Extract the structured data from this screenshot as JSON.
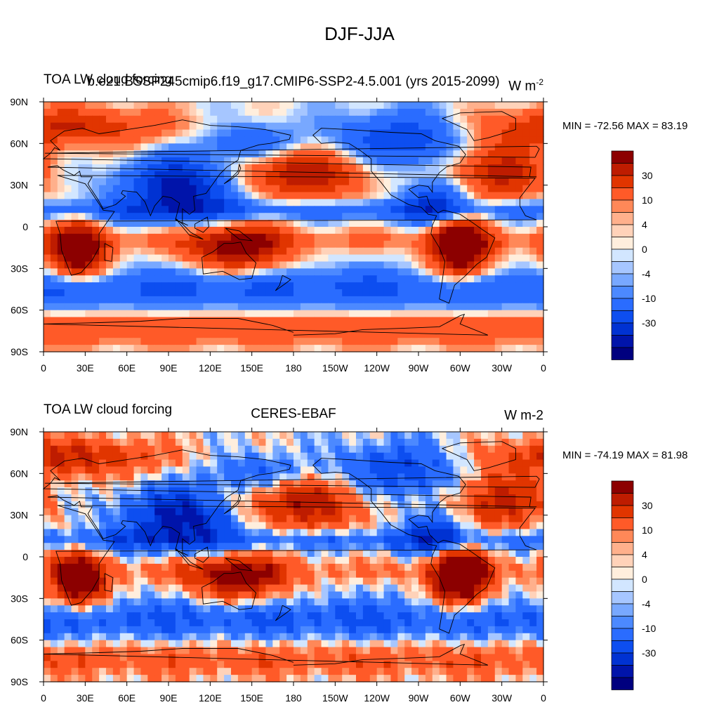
{
  "figure": {
    "title": "DJF-JJA",
    "colors": {
      "levels": [
        -50,
        -40,
        -30,
        -20,
        -10,
        -6,
        -4,
        -2,
        0,
        2,
        4,
        6,
        10,
        20,
        30,
        40,
        50
      ],
      "palette": [
        "#00007f",
        "#0014aa",
        "#0032d2",
        "#0d4ef0",
        "#2a6cff",
        "#4c89ff",
        "#78a8ff",
        "#a6c6ff",
        "#d2e6ff",
        "#ffeedd",
        "#ffd2b9",
        "#ffb08c",
        "#ff8858",
        "#ff5a28",
        "#e13500",
        "#be1c00",
        "#8c0000"
      ],
      "coastline": "#000000"
    }
  },
  "panels": [
    {
      "title_left": "TOA LW cloud forcing",
      "title_center": "b.e21.BSSP245cmip6.f19_g17.CMIP6-SSP2-4.5.001 (yrs 2015-2099)",
      "units": "W m",
      "units_sup": "-2",
      "min_max": "MIN = -72.56 MAX =  83.19",
      "colorbar_labels": [
        "30",
        "10",
        "4",
        "0",
        "-4",
        "-10",
        "-30"
      ],
      "x_tick_labels": [
        "0",
        "30E",
        "60E",
        "90E",
        "120E",
        "150E",
        "180",
        "150W",
        "120W",
        "90W",
        "60W",
        "30W",
        "0"
      ],
      "y_tick_labels": [
        "90N",
        "60N",
        "30N",
        "0",
        "30S",
        "60S",
        "90S"
      ]
    },
    {
      "title_left": "TOA LW cloud forcing",
      "title_center": "CERES-EBAF",
      "units": "W m-2",
      "units_sup": "",
      "min_max": "MIN = -74.19 MAX =  81.98",
      "colorbar_labels": [
        "30",
        "10",
        "4",
        "0",
        "-4",
        "-10",
        "-30"
      ],
      "x_tick_labels": [
        "0",
        "30E",
        "60E",
        "90E",
        "120E",
        "150E",
        "180",
        "150W",
        "120W",
        "90W",
        "60W",
        "30W",
        "0"
      ],
      "y_tick_labels": [
        "90N",
        "60N",
        "30N",
        "0",
        "30S",
        "60S",
        "90S"
      ]
    }
  ],
  "chart_data": [
    {
      "type": "heatmap",
      "title": "DJF-JJA",
      "subtitle": "b.e21.BSSP245cmip6.f19_g17.CMIP6-SSP2-4.5.001 (yrs 2015-2099)",
      "variable": "TOA LW cloud forcing",
      "units": "W m-2",
      "min": -72.56,
      "max": 83.19,
      "xlim": [
        0,
        360
      ],
      "ylim": [
        -90,
        90
      ],
      "colorbar_ticks": [
        30,
        10,
        4,
        0,
        -4,
        -10,
        -30
      ]
    },
    {
      "type": "heatmap",
      "title": "DJF-JJA",
      "subtitle": "CERES-EBAF",
      "variable": "TOA LW cloud forcing",
      "units": "W m-2",
      "min": -74.19,
      "max": 81.98,
      "xlim": [
        0,
        360
      ],
      "ylim": [
        -90,
        90
      ],
      "colorbar_ticks": [
        30,
        10,
        4,
        0,
        -4,
        -10,
        -30
      ]
    }
  ]
}
